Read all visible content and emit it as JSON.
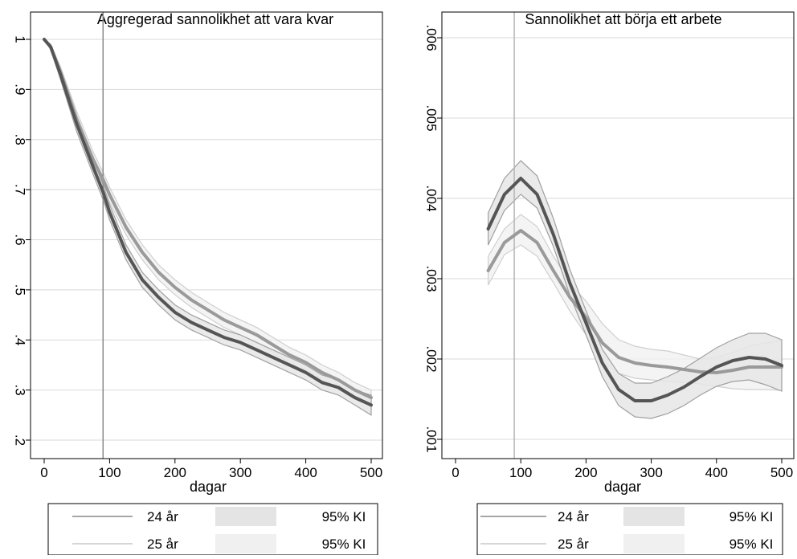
{
  "chart_data": [
    {
      "type": "line",
      "title": "Aggregerad sannolikhet att vara kvar",
      "xlabel": "dagar",
      "ylabel": "",
      "xlim": [
        0,
        500
      ],
      "ylim": [
        0.2,
        1.0
      ],
      "xticks": [
        0,
        100,
        200,
        300,
        400,
        500
      ],
      "xtick_labels": [
        "0",
        "100",
        "200",
        "300",
        "400",
        "500"
      ],
      "yticks": [
        0.2,
        0.3,
        0.4,
        0.5,
        0.6,
        0.7,
        0.8,
        0.9,
        1.0
      ],
      "ytick_labels": [
        ".2",
        ".3",
        ".4",
        ".5",
        ".6",
        ".7",
        ".8",
        ".9",
        "1"
      ],
      "grid": true,
      "reference_line_x": 90,
      "series": [
        {
          "name": "24 år",
          "color": "#555555",
          "x": [
            0,
            10,
            25,
            50,
            75,
            90,
            100,
            125,
            150,
            175,
            200,
            225,
            250,
            275,
            300,
            325,
            350,
            375,
            400,
            425,
            450,
            475,
            500
          ],
          "y": [
            1.0,
            0.985,
            0.93,
            0.83,
            0.745,
            0.695,
            0.655,
            0.575,
            0.52,
            0.485,
            0.455,
            0.435,
            0.42,
            0.405,
            0.395,
            0.38,
            0.365,
            0.35,
            0.335,
            0.315,
            0.305,
            0.285,
            0.27
          ],
          "ci_lower": [
            1.0,
            0.98,
            0.92,
            0.815,
            0.73,
            0.68,
            0.64,
            0.56,
            0.505,
            0.47,
            0.44,
            0.42,
            0.405,
            0.39,
            0.38,
            0.365,
            0.35,
            0.335,
            0.32,
            0.3,
            0.29,
            0.27,
            0.25
          ],
          "ci_upper": [
            1.0,
            0.99,
            0.94,
            0.845,
            0.76,
            0.71,
            0.67,
            0.59,
            0.535,
            0.5,
            0.47,
            0.45,
            0.435,
            0.42,
            0.41,
            0.395,
            0.38,
            0.365,
            0.35,
            0.33,
            0.32,
            0.3,
            0.29
          ]
        },
        {
          "name": "25 år",
          "color": "#9a9a9a",
          "x": [
            0,
            10,
            25,
            50,
            75,
            90,
            100,
            125,
            150,
            175,
            200,
            225,
            250,
            275,
            300,
            325,
            350,
            375,
            400,
            425,
            450,
            475,
            500
          ],
          "y": [
            1.0,
            0.985,
            0.935,
            0.84,
            0.76,
            0.72,
            0.69,
            0.625,
            0.575,
            0.535,
            0.505,
            0.48,
            0.46,
            0.44,
            0.425,
            0.41,
            0.39,
            0.37,
            0.355,
            0.335,
            0.32,
            0.3,
            0.285
          ],
          "ci_lower": [
            1.0,
            0.98,
            0.925,
            0.825,
            0.745,
            0.705,
            0.675,
            0.61,
            0.56,
            0.52,
            0.49,
            0.465,
            0.445,
            0.425,
            0.41,
            0.395,
            0.375,
            0.355,
            0.34,
            0.32,
            0.305,
            0.285,
            0.27
          ],
          "ci_upper": [
            1.0,
            0.99,
            0.945,
            0.855,
            0.775,
            0.735,
            0.705,
            0.64,
            0.59,
            0.55,
            0.52,
            0.495,
            0.475,
            0.455,
            0.44,
            0.425,
            0.405,
            0.385,
            0.37,
            0.35,
            0.335,
            0.315,
            0.3
          ]
        }
      ],
      "legend": {
        "placement": "bottom",
        "entries": [
          "24 år",
          "95% KI",
          "25 år",
          "95% KI"
        ]
      }
    },
    {
      "type": "line",
      "title": "Sannolikhet att börja ett arbete",
      "xlabel": "dagar",
      "ylabel": "",
      "xlim": [
        0,
        500
      ],
      "ylim": [
        0.001,
        0.006
      ],
      "xticks": [
        0,
        100,
        200,
        300,
        400,
        500
      ],
      "xtick_labels": [
        "0",
        "100",
        "200",
        "300",
        "400",
        "500"
      ],
      "yticks": [
        0.001,
        0.002,
        0.003,
        0.004,
        0.005,
        0.006
      ],
      "ytick_labels": [
        ".001",
        ".002",
        ".003",
        ".004",
        ".005",
        ".006"
      ],
      "grid": true,
      "reference_line_x": 90,
      "series": [
        {
          "name": "24 år",
          "color": "#555555",
          "x": [
            50,
            75,
            100,
            125,
            150,
            175,
            200,
            225,
            250,
            275,
            300,
            325,
            350,
            375,
            400,
            425,
            450,
            475,
            500
          ],
          "y": [
            0.00362,
            0.00405,
            0.00425,
            0.00405,
            0.00355,
            0.00295,
            0.00245,
            0.00195,
            0.00162,
            0.00148,
            0.00148,
            0.00155,
            0.00165,
            0.00178,
            0.0019,
            0.00198,
            0.00202,
            0.002,
            0.00192
          ],
          "ci_lower": [
            0.00342,
            0.00385,
            0.00405,
            0.00388,
            0.0034,
            0.0028,
            0.0023,
            0.00178,
            0.00142,
            0.00128,
            0.00126,
            0.00132,
            0.00142,
            0.00155,
            0.00166,
            0.00172,
            0.00174,
            0.00168,
            0.0016
          ],
          "ci_upper": [
            0.00382,
            0.00425,
            0.00447,
            0.00428,
            0.00375,
            0.00312,
            0.0026,
            0.00212,
            0.00182,
            0.0017,
            0.0017,
            0.00178,
            0.00188,
            0.00201,
            0.00214,
            0.00224,
            0.00232,
            0.00232,
            0.00224
          ]
        },
        {
          "name": "25 år",
          "color": "#9a9a9a",
          "x": [
            50,
            75,
            100,
            125,
            150,
            175,
            200,
            225,
            250,
            275,
            300,
            325,
            350,
            375,
            400,
            425,
            450,
            475,
            500
          ],
          "y": [
            0.0031,
            0.00345,
            0.0036,
            0.00345,
            0.0031,
            0.00277,
            0.00252,
            0.0022,
            0.00202,
            0.00195,
            0.00192,
            0.0019,
            0.00187,
            0.00184,
            0.00183,
            0.00186,
            0.0019,
            0.0019,
            0.0019
          ],
          "ci_lower": [
            0.00292,
            0.0033,
            0.00342,
            0.00328,
            0.00295,
            0.0026,
            0.0023,
            0.00197,
            0.00182,
            0.00176,
            0.00174,
            0.00172,
            0.00171,
            0.00169,
            0.00166,
            0.00163,
            0.00162,
            0.00162,
            0.00161
          ],
          "ci_upper": [
            0.00328,
            0.00362,
            0.0038,
            0.00365,
            0.00328,
            0.00295,
            0.00272,
            0.00244,
            0.00224,
            0.00216,
            0.00212,
            0.0021,
            0.00205,
            0.002,
            0.00202,
            0.00208,
            0.00216,
            0.0022,
            0.00223
          ]
        }
      ],
      "legend": {
        "placement": "bottom",
        "entries": [
          "24 år",
          "95% KI",
          "25 år",
          "95% KI"
        ]
      }
    }
  ]
}
